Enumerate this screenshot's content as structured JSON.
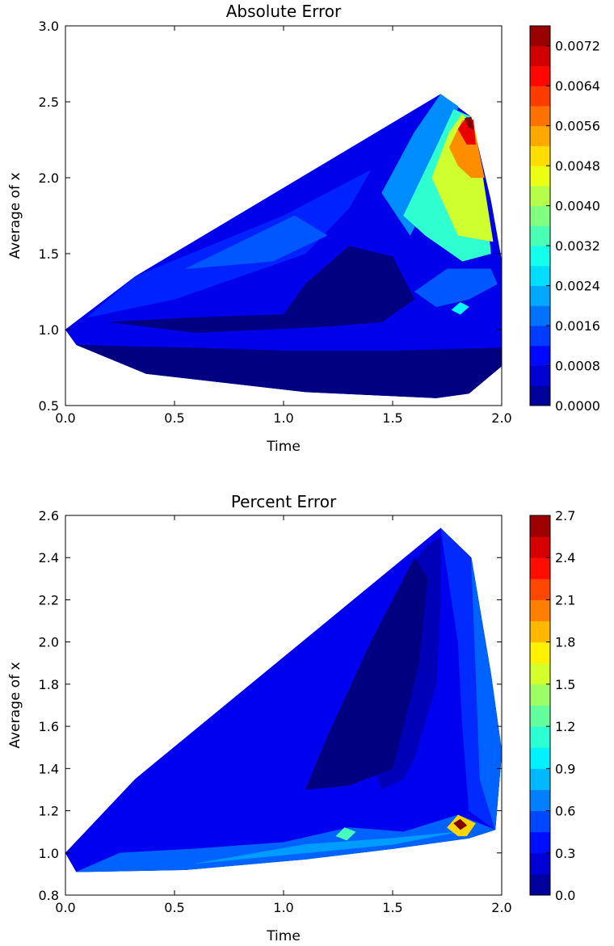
{
  "chart_data": [
    {
      "type": "contour",
      "title": "Absolute Error",
      "xlabel": "Time",
      "ylabel": "Average of x",
      "xlim": [
        0.0,
        2.0
      ],
      "ylim": [
        0.5,
        3.0
      ],
      "xticks": [
        "0.0",
        "0.5",
        "1.0",
        "1.5",
        "2.0"
      ],
      "yticks": [
        "0.5",
        "1.0",
        "1.5",
        "2.0",
        "2.5",
        "3.0"
      ],
      "colorbar": {
        "range": [
          0.0,
          0.0076
        ],
        "levels": 19,
        "ticks": [
          "0.0000",
          "0.0008",
          "0.0016",
          "0.0024",
          "0.0032",
          "0.0040",
          "0.0048",
          "0.0056",
          "0.0064",
          "0.0072"
        ],
        "colormap": "jet"
      },
      "boundary": [
        [
          0.0,
          1.0
        ],
        [
          0.32,
          1.35
        ],
        [
          1.72,
          2.55
        ],
        [
          1.86,
          2.4
        ],
        [
          1.95,
          1.85
        ],
        [
          2.0,
          1.45
        ],
        [
          2.0,
          0.76
        ],
        [
          1.85,
          0.58
        ],
        [
          1.7,
          0.55
        ],
        [
          1.1,
          0.59
        ],
        [
          0.37,
          0.71
        ],
        [
          0.05,
          0.9
        ]
      ],
      "regions": [
        {
          "value": 0.0008,
          "polygon": [
            [
              0.0,
              1.0
            ],
            [
              0.32,
              1.35
            ],
            [
              1.72,
              2.55
            ],
            [
              1.86,
              2.4
            ],
            [
              1.95,
              1.85
            ],
            [
              2.0,
              1.45
            ],
            [
              2.0,
              0.76
            ],
            [
              1.85,
              0.58
            ],
            [
              1.7,
              0.55
            ],
            [
              1.1,
              0.59
            ],
            [
              0.37,
              0.71
            ],
            [
              0.05,
              0.9
            ]
          ]
        },
        {
          "value": 0.0,
          "polygon": [
            [
              0.05,
              0.9
            ],
            [
              0.37,
              0.71
            ],
            [
              1.1,
              0.59
            ],
            [
              1.7,
              0.55
            ],
            [
              1.85,
              0.58
            ],
            [
              2.0,
              0.76
            ],
            [
              2.0,
              0.88
            ],
            [
              1.5,
              0.86
            ],
            [
              1.0,
              0.86
            ],
            [
              0.6,
              0.88
            ],
            [
              0.25,
              0.89
            ]
          ]
        },
        {
          "value": 0.0,
          "polygon": [
            [
              0.2,
              1.05
            ],
            [
              0.6,
              1.08
            ],
            [
              1.0,
              1.1
            ],
            [
              1.1,
              1.3
            ],
            [
              1.3,
              1.55
            ],
            [
              1.5,
              1.48
            ],
            [
              1.6,
              1.2
            ],
            [
              1.45,
              1.05
            ],
            [
              1.2,
              1.02
            ],
            [
              0.6,
              0.98
            ]
          ]
        },
        {
          "value": 0.0012,
          "polygon": [
            [
              0.1,
              1.08
            ],
            [
              0.32,
              1.35
            ],
            [
              1.0,
              1.75
            ],
            [
              1.4,
              2.05
            ],
            [
              1.3,
              1.8
            ],
            [
              1.1,
              1.5
            ],
            [
              0.8,
              1.35
            ],
            [
              0.5,
              1.2
            ]
          ]
        },
        {
          "value": 0.0016,
          "polygon": [
            [
              0.55,
              1.4
            ],
            [
              1.05,
              1.75
            ],
            [
              1.2,
              1.62
            ],
            [
              0.95,
              1.45
            ]
          ]
        },
        {
          "value": 0.002,
          "polygon": [
            [
              1.45,
              1.9
            ],
            [
              1.6,
              2.3
            ],
            [
              1.72,
              2.55
            ],
            [
              1.8,
              2.47
            ],
            [
              1.72,
              2.0
            ],
            [
              1.58,
              1.62
            ]
          ]
        },
        {
          "value": 0.0032,
          "polygon": [
            [
              1.55,
              1.75
            ],
            [
              1.7,
              2.2
            ],
            [
              1.78,
              2.45
            ],
            [
              1.86,
              2.4
            ],
            [
              1.92,
              1.9
            ],
            [
              1.95,
              1.5
            ],
            [
              1.82,
              1.45
            ],
            [
              1.65,
              1.62
            ]
          ]
        },
        {
          "value": 0.0044,
          "polygon": [
            [
              1.68,
              2.0
            ],
            [
              1.76,
              2.3
            ],
            [
              1.82,
              2.42
            ],
            [
              1.88,
              2.3
            ],
            [
              1.93,
              1.85
            ],
            [
              1.96,
              1.58
            ],
            [
              1.8,
              1.62
            ]
          ]
        },
        {
          "value": 0.0056,
          "polygon": [
            [
              1.76,
              2.2
            ],
            [
              1.82,
              2.38
            ],
            [
              1.87,
              2.35
            ],
            [
              1.92,
              2.0
            ],
            [
              1.86,
              2.0
            ],
            [
              1.8,
              2.08
            ]
          ]
        },
        {
          "value": 0.0068,
          "polygon": [
            [
              1.8,
              2.32
            ],
            [
              1.84,
              2.4
            ],
            [
              1.87,
              2.38
            ],
            [
              1.88,
              2.22
            ],
            [
              1.84,
              2.22
            ]
          ]
        },
        {
          "value": 0.0076,
          "polygon": [
            [
              1.83,
              2.39
            ],
            [
              1.86,
              2.4
            ],
            [
              1.87,
              2.32
            ],
            [
              1.85,
              2.33
            ]
          ]
        },
        {
          "value": 0.0016,
          "polygon": [
            [
              1.6,
              1.25
            ],
            [
              1.75,
              1.4
            ],
            [
              1.95,
              1.4
            ],
            [
              1.98,
              1.3
            ],
            [
              1.85,
              1.2
            ],
            [
              1.7,
              1.15
            ]
          ]
        },
        {
          "value": 0.0028,
          "polygon": [
            [
              1.77,
              1.13
            ],
            [
              1.81,
              1.18
            ],
            [
              1.85,
              1.15
            ],
            [
              1.81,
              1.1
            ]
          ]
        }
      ]
    },
    {
      "type": "contour",
      "title": "Percent Error",
      "xlabel": "Time",
      "ylabel": "Average of x",
      "xlim": [
        0.0,
        2.0
      ],
      "ylim": [
        0.8,
        2.6
      ],
      "xticks": [
        "0.0",
        "0.5",
        "1.0",
        "1.5",
        "2.0"
      ],
      "yticks": [
        "0.8",
        "1.0",
        "1.2",
        "1.4",
        "1.6",
        "1.8",
        "2.0",
        "2.2",
        "2.4",
        "2.6"
      ],
      "colorbar": {
        "range": [
          0.0,
          2.7
        ],
        "levels": 18,
        "ticks": [
          "0.0",
          "0.3",
          "0.6",
          "0.9",
          "1.2",
          "1.5",
          "1.8",
          "2.1",
          "2.4",
          "2.7"
        ],
        "colormap": "jet"
      },
      "boundary": [
        [
          0.0,
          1.0
        ],
        [
          0.32,
          1.35
        ],
        [
          1.72,
          2.54
        ],
        [
          1.86,
          2.4
        ],
        [
          1.95,
          1.85
        ],
        [
          2.0,
          1.48
        ],
        [
          1.97,
          1.11
        ],
        [
          1.85,
          1.07
        ],
        [
          1.5,
          1.02
        ],
        [
          1.1,
          0.97
        ],
        [
          0.55,
          0.92
        ],
        [
          0.05,
          0.91
        ]
      ],
      "regions": [
        {
          "value": 0.3,
          "polygon": [
            [
              0.0,
              1.0
            ],
            [
              0.32,
              1.35
            ],
            [
              1.72,
              2.54
            ],
            [
              1.86,
              2.4
            ],
            [
              1.95,
              1.85
            ],
            [
              2.0,
              1.48
            ],
            [
              1.97,
              1.11
            ],
            [
              1.85,
              1.07
            ],
            [
              1.5,
              1.02
            ],
            [
              1.1,
              0.97
            ],
            [
              0.55,
              0.92
            ],
            [
              0.05,
              0.91
            ]
          ]
        },
        {
          "value": 0.45,
          "polygon": [
            [
              1.72,
              2.54
            ],
            [
              1.86,
              2.4
            ],
            [
              1.95,
              1.85
            ],
            [
              2.0,
              1.48
            ],
            [
              1.97,
              1.11
            ],
            [
              1.85,
              1.2
            ],
            [
              1.82,
              1.6
            ],
            [
              1.8,
              2.0
            ]
          ]
        },
        {
          "value": 0.6,
          "polygon": [
            [
              1.86,
              2.4
            ],
            [
              1.95,
              1.85
            ],
            [
              2.0,
              1.48
            ],
            [
              1.97,
              1.11
            ],
            [
              1.9,
              1.35
            ],
            [
              1.88,
              1.9
            ]
          ]
        },
        {
          "value": 0.15,
          "polygon": [
            [
              1.35,
              1.6
            ],
            [
              1.45,
              2.0
            ],
            [
              1.55,
              2.3
            ],
            [
              1.65,
              2.45
            ],
            [
              1.72,
              2.5
            ],
            [
              1.72,
              2.2
            ],
            [
              1.7,
              1.8
            ],
            [
              1.6,
              1.45
            ],
            [
              1.55,
              1.35
            ],
            [
              1.45,
              1.3
            ]
          ]
        },
        {
          "value": 0.0,
          "polygon": [
            [
              1.1,
              1.3
            ],
            [
              1.2,
              1.55
            ],
            [
              1.4,
              2.0
            ],
            [
              1.6,
              2.4
            ],
            [
              1.66,
              2.3
            ],
            [
              1.62,
              1.9
            ],
            [
              1.5,
              1.4
            ],
            [
              1.3,
              1.32
            ]
          ]
        },
        {
          "value": 0.6,
          "polygon": [
            [
              0.05,
              0.91
            ],
            [
              0.55,
              0.92
            ],
            [
              1.1,
              0.97
            ],
            [
              1.5,
              1.02
            ],
            [
              1.85,
              1.07
            ],
            [
              1.97,
              1.11
            ],
            [
              1.8,
              1.18
            ],
            [
              1.55,
              1.1
            ],
            [
              1.3,
              1.12
            ],
            [
              1.0,
              1.05
            ],
            [
              0.6,
              1.02
            ],
            [
              0.25,
              1.0
            ]
          ]
        },
        {
          "value": 0.75,
          "polygon": [
            [
              0.6,
              0.95
            ],
            [
              1.1,
              1.0
            ],
            [
              1.5,
              1.04
            ],
            [
              1.8,
              1.1
            ],
            [
              1.5,
              1.07
            ],
            [
              1.1,
              1.04
            ]
          ]
        },
        {
          "value": 1.2,
          "polygon": [
            [
              1.24,
              1.08
            ],
            [
              1.28,
              1.12
            ],
            [
              1.33,
              1.1
            ],
            [
              1.29,
              1.06
            ]
          ]
        },
        {
          "value": 1.8,
          "polygon": [
            [
              1.75,
              1.12
            ],
            [
              1.8,
              1.18
            ],
            [
              1.88,
              1.14
            ],
            [
              1.84,
              1.08
            ],
            [
              1.8,
              1.08
            ]
          ]
        },
        {
          "value": 2.7,
          "polygon": [
            [
              1.78,
              1.14
            ],
            [
              1.81,
              1.16
            ],
            [
              1.84,
              1.13
            ],
            [
              1.81,
              1.11
            ]
          ]
        }
      ]
    }
  ]
}
